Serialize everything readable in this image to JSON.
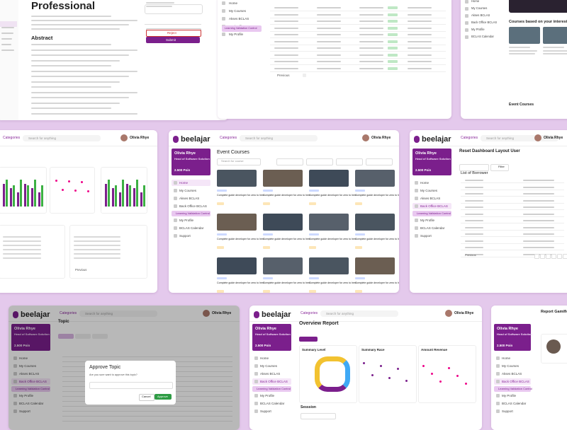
{
  "brand": "beelajar",
  "header": {
    "categories": "Categories",
    "search": "Search for anything",
    "user": "Olivia Rhye"
  },
  "sidebar": {
    "user": "Olivia Rhye",
    "role": "Head of Software Solution",
    "points": "2.500 Poin",
    "menu": [
      "Home",
      "My Courses",
      "Akses BCLAS",
      "Back Office BCLAS",
      "My Profile",
      "BCLAS Calendar",
      "Support"
    ],
    "submenu": "Learning Validation Control"
  },
  "article": {
    "title": "Professional",
    "abstract_heading": "Abstract",
    "reject": "Reject",
    "submit": "Submit"
  },
  "courses": {
    "title": "Courses based on your interests",
    "events": "Event Courses"
  },
  "event": {
    "title": "Event Courses",
    "search": "Search for course",
    "card_title": "Complete guide developer for zero to hero"
  },
  "borrower": {
    "title": "Reset Dashboard Layout User",
    "list_title": "List of Borrower",
    "filter": "Filter",
    "previous": "Previous"
  },
  "topic": {
    "title": "Topic",
    "modal_title": "Approve Topic",
    "modal_text": "Are you sure want to approve this topic?",
    "cancel": "Cancel",
    "approve": "Approve"
  },
  "report": {
    "title": "Overview Report",
    "cards": [
      "Summary Level",
      "Summary Race",
      "Amount Revenue"
    ],
    "session": "Sesssion"
  },
  "gamification": {
    "title": "Report Gamification"
  },
  "previous": "Previous"
}
